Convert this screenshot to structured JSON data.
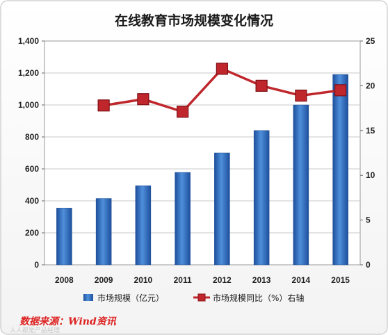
{
  "chart_data": {
    "type": "bar",
    "title": "在线教育市场规模变化情况",
    "categories": [
      "2008",
      "2009",
      "2010",
      "2011",
      "2012",
      "2013",
      "2014",
      "2015"
    ],
    "series": [
      {
        "name": "市场规模（亿元）",
        "type": "bar",
        "axis": "left",
        "color": "#2e6fc2",
        "values": [
          355,
          415,
          495,
          578,
          700,
          840,
          1000,
          1190
        ]
      },
      {
        "name": "市场规模同比（%）右轴",
        "type": "line",
        "axis": "right",
        "color": "#c0272d",
        "values": [
          null,
          17.8,
          18.5,
          17.1,
          21.9,
          20.0,
          18.9,
          19.5
        ]
      }
    ],
    "y_left": {
      "lim": [
        0,
        1400
      ],
      "ticks": [
        "0",
        "200",
        "400",
        "600",
        "800",
        "1,000",
        "1,200",
        "1,400"
      ]
    },
    "y_right": {
      "lim": [
        0,
        25
      ],
      "ticks": [
        "0",
        "5",
        "10",
        "15",
        "20",
        "25"
      ]
    },
    "grid": true,
    "legend_position": "bottom"
  },
  "source_label": "数据来源：Wind资讯",
  "watermark": "人人都是产品经理"
}
